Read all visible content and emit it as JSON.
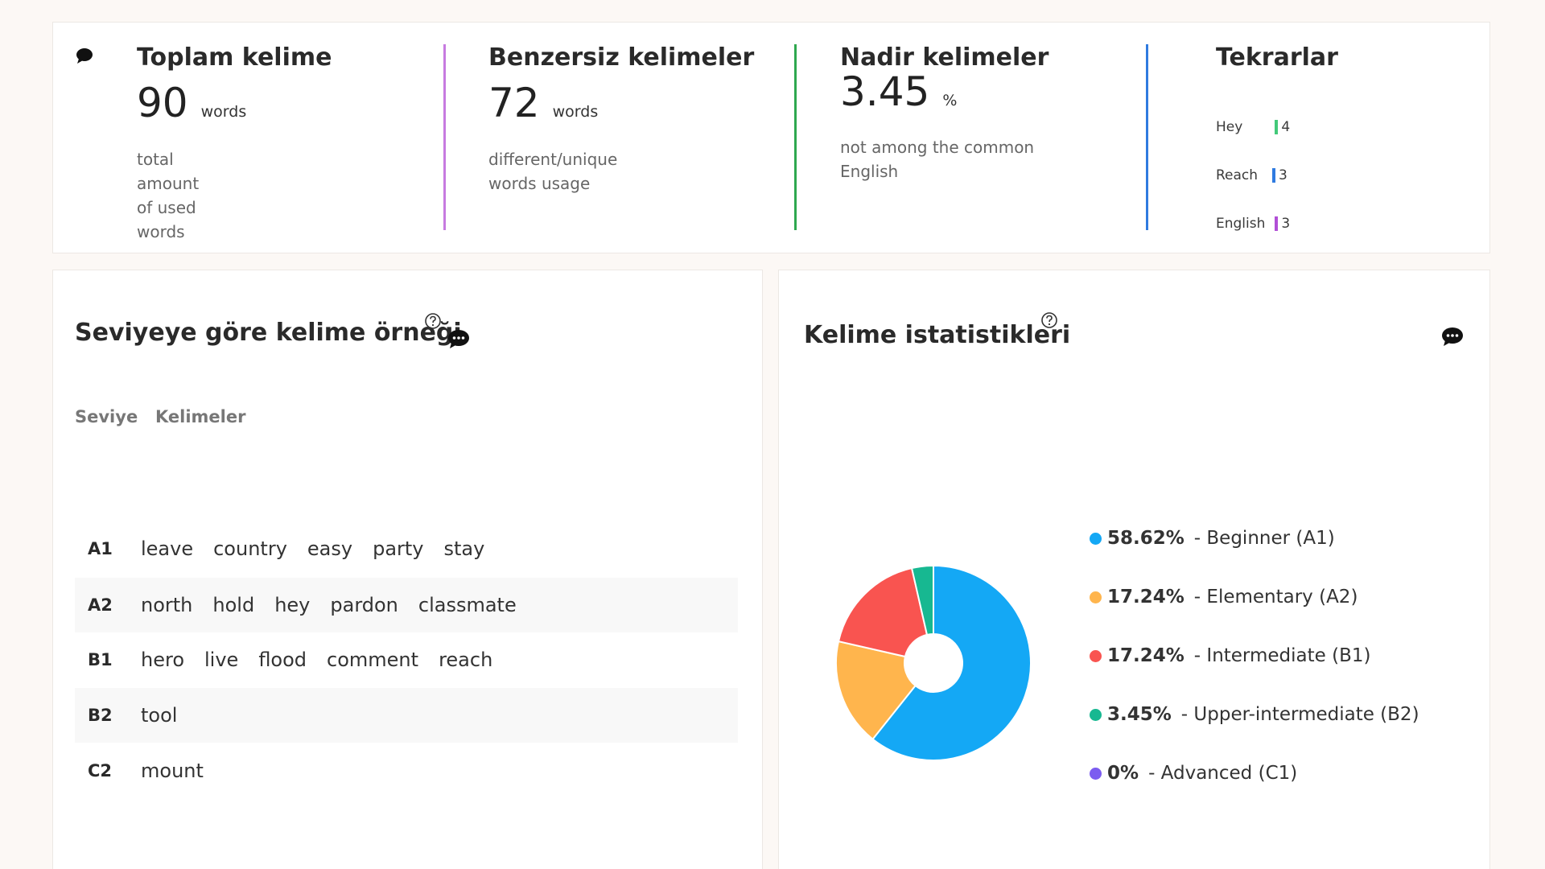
{
  "stats": {
    "total": {
      "title": "Toplam kelime",
      "value": "90",
      "unit": "words",
      "desc": "total amount of used words"
    },
    "unique": {
      "title": "Benzersiz kelimeler",
      "value": "72",
      "unit": "words",
      "desc": "different/unique words usage"
    },
    "rare": {
      "title": "Nadir kelimeler",
      "value": "3.45",
      "unit": "%",
      "desc": "not among the common English"
    },
    "repeats": {
      "title": "Tekrarlar",
      "items": [
        {
          "word": "Hey",
          "count": "4"
        },
        {
          "word": "Reach",
          "count": "3"
        },
        {
          "word": "English",
          "count": "3"
        }
      ]
    },
    "colors": {
      "unique_sep": "#c77be0",
      "rare_sep": "#2fa84f",
      "repeats_sep": "#2f7be0",
      "bar1": "#43c97a",
      "bar2": "#2f7be0",
      "bar3": "#b14fd6"
    }
  },
  "levels": {
    "title": "Seviyeye göre kelime örneği",
    "col_level": "Seviye",
    "col_words": "Kelimeler",
    "rows": [
      {
        "level": "A1",
        "words": [
          "leave",
          "country",
          "easy",
          "party",
          "stay"
        ]
      },
      {
        "level": "A2",
        "words": [
          "north",
          "hold",
          "hey",
          "pardon",
          "classmate"
        ]
      },
      {
        "level": "B1",
        "words": [
          "hero",
          "live",
          "flood",
          "comment",
          "reach"
        ]
      },
      {
        "level": "B2",
        "words": [
          "tool"
        ]
      },
      {
        "level": "C2",
        "words": [
          "mount"
        ]
      }
    ]
  },
  "word_stats": {
    "title": "Kelime istatistikleri"
  },
  "chart_data": {
    "type": "pie",
    "donut": true,
    "legend_position": "right",
    "categories": [
      "Beginner (A1)",
      "Elementary (A2)",
      "Intermediate (B1)",
      "Upper-intermediate (B2)",
      "Advanced (C1)"
    ],
    "values": [
      58.62,
      17.24,
      17.24,
      3.45,
      0
    ],
    "labels": [
      "58.62%",
      "17.24%",
      "17.24%",
      "3.45%",
      "0%"
    ],
    "colors": [
      "#14a8f5",
      "#ffb54d",
      "#f95450",
      "#17b891",
      "#7b5cf0"
    ]
  },
  "icons": {
    "chat": "chat-bubble-icon",
    "help": "help-circle-icon"
  }
}
